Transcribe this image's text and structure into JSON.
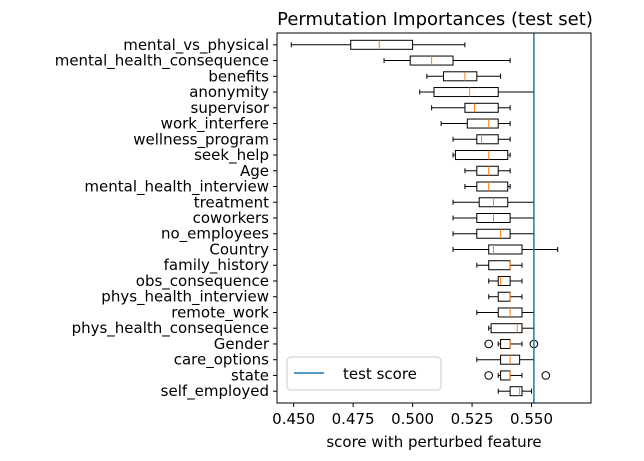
{
  "chart_data": {
    "type": "box",
    "title": "Permutation Importances (test set)",
    "xlabel": "score with perturbed feature",
    "ylabel": "",
    "xlim": [
      0.443,
      0.575
    ],
    "xticks": [
      "0.450",
      "0.475",
      "0.500",
      "0.525",
      "0.550"
    ],
    "xtick_values": [
      0.45,
      0.475,
      0.5,
      0.525,
      0.55
    ],
    "grid": false,
    "legend": {
      "placement": "lower-left",
      "entries": [
        "test score"
      ]
    },
    "test_score": 0.551,
    "colors": {
      "box": "#000000",
      "median": "#ff7f0e",
      "test_score": "#1f77b4"
    },
    "features": [
      {
        "name": "mental_vs_physical",
        "whislo": 0.449,
        "q1": 0.474,
        "med": 0.486,
        "q3": 0.5,
        "whishi": 0.522,
        "fliers": []
      },
      {
        "name": "mental_health_consequence",
        "whislo": 0.488,
        "q1": 0.499,
        "med": 0.508,
        "q3": 0.517,
        "whishi": 0.541,
        "fliers": []
      },
      {
        "name": "benefits",
        "whislo": 0.506,
        "q1": 0.513,
        "med": 0.522,
        "q3": 0.527,
        "whishi": 0.537,
        "fliers": []
      },
      {
        "name": "anonymity",
        "whislo": 0.503,
        "q1": 0.509,
        "med": 0.524,
        "q3": 0.536,
        "whishi": 0.551,
        "fliers": []
      },
      {
        "name": "supervisor",
        "whislo": 0.508,
        "q1": 0.522,
        "med": 0.526,
        "q3": 0.536,
        "whishi": 0.541,
        "fliers": []
      },
      {
        "name": "work_interfere",
        "whislo": 0.512,
        "q1": 0.523,
        "med": 0.532,
        "q3": 0.536,
        "whishi": 0.541,
        "fliers": []
      },
      {
        "name": "wellness_program",
        "whislo": 0.517,
        "q1": 0.527,
        "med": 0.529,
        "q3": 0.536,
        "whishi": 0.541,
        "fliers": []
      },
      {
        "name": "seek_help",
        "whislo": 0.517,
        "q1": 0.518,
        "med": 0.532,
        "q3": 0.54,
        "whishi": 0.541,
        "fliers": []
      },
      {
        "name": "Age",
        "whislo": 0.522,
        "q1": 0.527,
        "med": 0.532,
        "q3": 0.536,
        "whishi": 0.541,
        "fliers": []
      },
      {
        "name": "mental_health_interview",
        "whislo": 0.522,
        "q1": 0.527,
        "med": 0.532,
        "q3": 0.54,
        "whishi": 0.541,
        "fliers": []
      },
      {
        "name": "treatment",
        "whislo": 0.517,
        "q1": 0.528,
        "med": 0.534,
        "q3": 0.54,
        "whishi": 0.551,
        "fliers": []
      },
      {
        "name": "coworkers",
        "whislo": 0.517,
        "q1": 0.527,
        "med": 0.534,
        "q3": 0.541,
        "whishi": 0.551,
        "fliers": []
      },
      {
        "name": "no_employees",
        "whislo": 0.517,
        "q1": 0.527,
        "med": 0.537,
        "q3": 0.541,
        "whishi": 0.551,
        "fliers": []
      },
      {
        "name": "Country",
        "whislo": 0.517,
        "q1": 0.532,
        "med": 0.534,
        "q3": 0.546,
        "whishi": 0.561,
        "fliers": []
      },
      {
        "name": "family_history",
        "whislo": 0.527,
        "q1": 0.532,
        "med": 0.541,
        "q3": 0.541,
        "whishi": 0.546,
        "fliers": []
      },
      {
        "name": "obs_consequence",
        "whislo": 0.532,
        "q1": 0.536,
        "med": 0.537,
        "q3": 0.541,
        "whishi": 0.546,
        "fliers": []
      },
      {
        "name": "phys_health_interview",
        "whislo": 0.532,
        "q1": 0.536,
        "med": 0.541,
        "q3": 0.541,
        "whishi": 0.546,
        "fliers": []
      },
      {
        "name": "remote_work",
        "whislo": 0.527,
        "q1": 0.536,
        "med": 0.541,
        "q3": 0.546,
        "whishi": 0.551,
        "fliers": []
      },
      {
        "name": "phys_health_consequence",
        "whislo": 0.532,
        "q1": 0.533,
        "med": 0.544,
        "q3": 0.546,
        "whishi": 0.551,
        "fliers": []
      },
      {
        "name": "Gender",
        "whislo": 0.536,
        "q1": 0.537,
        "med": 0.541,
        "q3": 0.541,
        "whishi": 0.546,
        "fliers": [
          0.532,
          0.551
        ]
      },
      {
        "name": "care_options",
        "whislo": 0.527,
        "q1": 0.537,
        "med": 0.541,
        "q3": 0.545,
        "whishi": 0.551,
        "fliers": []
      },
      {
        "name": "state",
        "whislo": 0.536,
        "q1": 0.537,
        "med": 0.541,
        "q3": 0.541,
        "whishi": 0.546,
        "fliers": [
          0.532,
          0.556
        ]
      },
      {
        "name": "self_employed",
        "whislo": 0.536,
        "q1": 0.541,
        "med": 0.545,
        "q3": 0.546,
        "whishi": 0.55,
        "fliers": []
      }
    ]
  }
}
